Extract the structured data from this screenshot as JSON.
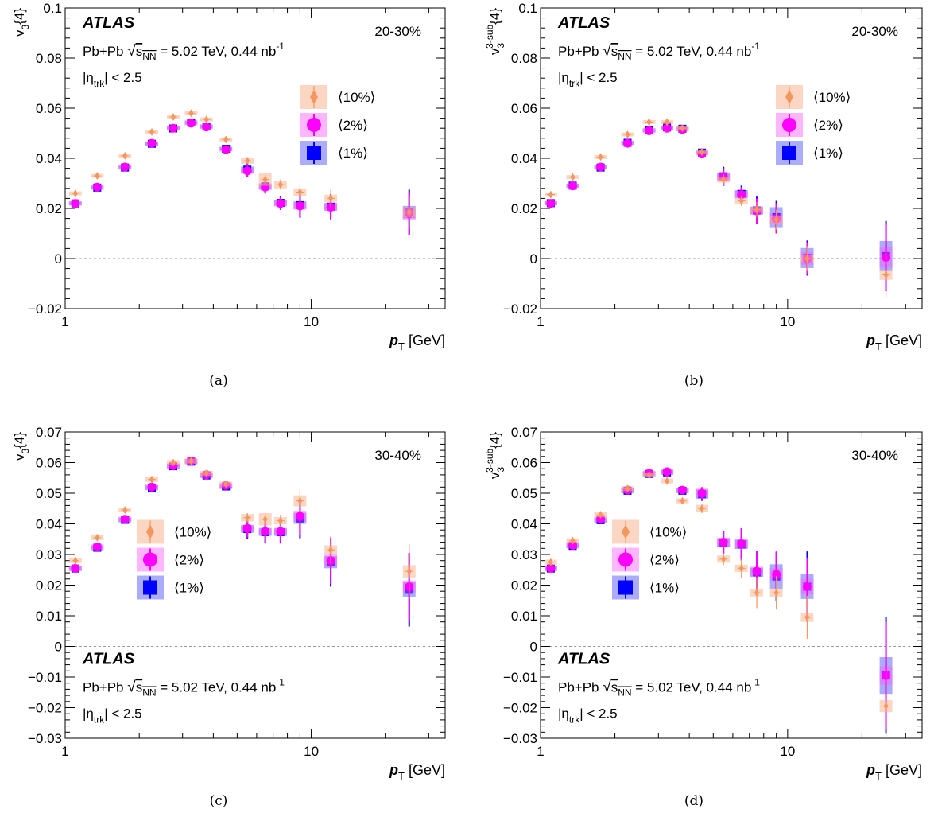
{
  "legend": {
    "entries": [
      {
        "key": "s10",
        "label": "⟨10%⟩"
      },
      {
        "key": "s2",
        "label": "⟨2%⟩"
      },
      {
        "key": "s1",
        "label": "⟨1%⟩"
      }
    ]
  },
  "chart_data": [
    {
      "type": "scatter",
      "panel": "(a)",
      "caption": "(a)",
      "experiment": "ATLAS",
      "system_text": "Pb+Pb",
      "energy_text": "s",
      "energy_sub": "NN",
      "energy_rest": "= 5.02 TeV, 0.44 nb",
      "lumi_exp": "-1",
      "eta_text": "|η",
      "eta_sub": "trk",
      "eta_rest": "| < 2.5",
      "centrality": "20-30%",
      "ylabel_main": "v",
      "ylabel_sub": "3",
      "ylabel_sup": "",
      "ylabel_tail": "{4}",
      "xlabel_p": "p",
      "xlabel_sub": "T",
      "xlabel_rest": "[GeV]",
      "xscale": "log",
      "xlim": [
        1,
        35
      ],
      "ylim": [
        -0.02,
        0.1
      ],
      "yticks": [
        -0.02,
        0,
        0.02,
        0.04,
        0.06,
        0.08,
        0.1
      ],
      "ytick_labels": [
        "−0.02",
        "0",
        "0.02",
        "0.04",
        "0.06",
        "0.08",
        "0.1"
      ],
      "xtick_labels": [
        "1",
        "10"
      ],
      "legend_placement": "upper-right",
      "series": [
        {
          "name": "⟨10%⟩",
          "key": "s10",
          "x": [
            1.1,
            1.35,
            1.75,
            2.25,
            2.75,
            3.25,
            3.75,
            4.5,
            5.5,
            6.5,
            7.5,
            9,
            12,
            25
          ],
          "y": [
            0.026,
            0.033,
            0.041,
            0.0505,
            0.0565,
            0.058,
            0.0555,
            0.0475,
            0.039,
            0.0315,
            0.0295,
            0.0265,
            0.024,
            0.0185
          ],
          "err": [
            0.0008,
            0.0008,
            0.0008,
            0.0008,
            0.0008,
            0.0008,
            0.0008,
            0.0008,
            0.0012,
            0.002,
            0.002,
            0.0035,
            0.0035,
            0.006
          ],
          "sys": [
            0.0008,
            0.0008,
            0.0008,
            0.0008,
            0.0008,
            0.0008,
            0.0008,
            0.0008,
            0.0012,
            0.0025,
            0.0015,
            0.0015,
            0.0015,
            0.002
          ]
        },
        {
          "name": "⟨2%⟩",
          "key": "s2",
          "x": [
            1.1,
            1.35,
            1.75,
            2.25,
            2.75,
            3.25,
            3.75,
            4.5,
            5.5,
            6.5,
            7.5,
            9,
            12,
            25
          ],
          "y": [
            0.022,
            0.0285,
            0.0365,
            0.046,
            0.052,
            0.054,
            0.0525,
            0.0435,
            0.035,
            0.0285,
            0.022,
            0.021,
            0.0205,
            0.018
          ],
          "err": [
            0.0007,
            0.0007,
            0.0007,
            0.0007,
            0.0007,
            0.0007,
            0.0007,
            0.0009,
            0.0025,
            0.0025,
            0.0025,
            0.0045,
            0.0045,
            0.0085
          ],
          "sys": [
            0.0008,
            0.0008,
            0.0008,
            0.0008,
            0.0008,
            0.0008,
            0.0008,
            0.0008,
            0.0012,
            0.0012,
            0.0012,
            0.0015,
            0.0015,
            0.0025
          ]
        },
        {
          "name": "⟨1%⟩",
          "key": "s1",
          "x": [
            1.1,
            1.35,
            1.75,
            2.25,
            2.75,
            3.25,
            3.75,
            4.5,
            5.5,
            6.5,
            7.5,
            9,
            12,
            25
          ],
          "y": [
            0.022,
            0.0283,
            0.0363,
            0.0458,
            0.0519,
            0.0543,
            0.0527,
            0.0438,
            0.0355,
            0.0288,
            0.0222,
            0.0213,
            0.0207,
            0.0185
          ],
          "err": [
            0.0007,
            0.0007,
            0.0007,
            0.0007,
            0.0007,
            0.0007,
            0.0007,
            0.0009,
            0.0028,
            0.0028,
            0.0028,
            0.005,
            0.005,
            0.009
          ],
          "sys": [
            0.0008,
            0.0008,
            0.0008,
            0.0008,
            0.0008,
            0.0008,
            0.0008,
            0.0008,
            0.0012,
            0.0012,
            0.0012,
            0.0015,
            0.0015,
            0.0025
          ]
        }
      ]
    },
    {
      "type": "scatter",
      "panel": "(b)",
      "caption": "(b)",
      "experiment": "ATLAS",
      "system_text": "Pb+Pb",
      "energy_text": "s",
      "energy_sub": "NN",
      "energy_rest": "= 5.02 TeV, 0.44 nb",
      "lumi_exp": "-1",
      "eta_text": "|η",
      "eta_sub": "trk",
      "eta_rest": "| < 2.5",
      "centrality": "20-30%",
      "ylabel_main": "v",
      "ylabel_sub": "3",
      "ylabel_sup": "3-sub",
      "ylabel_tail": "{4}",
      "xlabel_p": "p",
      "xlabel_sub": "T",
      "xlabel_rest": "[GeV]",
      "xscale": "log",
      "xlim": [
        1,
        35
      ],
      "ylim": [
        -0.02,
        0.1
      ],
      "yticks": [
        -0.02,
        0,
        0.02,
        0.04,
        0.06,
        0.08,
        0.1
      ],
      "ytick_labels": [
        "−0.02",
        "0",
        "0.02",
        "0.04",
        "0.06",
        "0.08",
        "0.1"
      ],
      "xtick_labels": [
        "1",
        "10"
      ],
      "legend_placement": "upper-right",
      "series": [
        {
          "name": "⟨10%⟩",
          "key": "s10",
          "x": [
            1.1,
            1.35,
            1.75,
            2.25,
            2.75,
            3.25,
            3.75,
            4.5,
            5.5,
            6.5,
            7.5,
            9,
            12,
            25
          ],
          "y": [
            0.0255,
            0.0325,
            0.0405,
            0.0495,
            0.0545,
            0.0545,
            0.052,
            0.0425,
            0.0315,
            0.023,
            0.0195,
            0.0155,
            0.0,
            -0.0065
          ],
          "err": [
            0.0008,
            0.0008,
            0.0008,
            0.0008,
            0.0008,
            0.0008,
            0.0008,
            0.0008,
            0.002,
            0.002,
            0.003,
            0.004,
            0.005,
            0.009
          ],
          "sys": [
            0.0008,
            0.0008,
            0.0008,
            0.0008,
            0.0008,
            0.0008,
            0.0008,
            0.0008,
            0.0012,
            0.0012,
            0.0012,
            0.0015,
            0.0015,
            0.002
          ]
        },
        {
          "name": "⟨2%⟩",
          "key": "s2",
          "x": [
            1.1,
            1.35,
            1.75,
            2.25,
            2.75,
            3.25,
            3.75,
            4.5,
            5.5,
            6.5,
            7.5,
            9,
            12,
            25
          ],
          "y": [
            0.022,
            0.029,
            0.0365,
            0.046,
            0.051,
            0.052,
            0.0515,
            0.042,
            0.0325,
            0.0255,
            0.019,
            0.016,
            0.0,
            0.0005
          ],
          "err": [
            0.0007,
            0.0007,
            0.0007,
            0.0007,
            0.0007,
            0.0007,
            0.0007,
            0.0009,
            0.0035,
            0.003,
            0.005,
            0.006,
            0.0065,
            0.013
          ],
          "sys": [
            0.0008,
            0.0008,
            0.0008,
            0.0008,
            0.0008,
            0.0008,
            0.0008,
            0.0008,
            0.0015,
            0.0015,
            0.0015,
            0.002,
            0.0025,
            0.004
          ]
        },
        {
          "name": "⟨1%⟩",
          "key": "s1",
          "x": [
            1.1,
            1.35,
            1.75,
            2.25,
            2.75,
            3.25,
            3.75,
            4.5,
            5.5,
            6.5,
            7.5,
            9,
            12,
            25
          ],
          "y": [
            0.0221,
            0.0291,
            0.0363,
            0.0462,
            0.0512,
            0.0523,
            0.0518,
            0.0423,
            0.0328,
            0.0258,
            0.0192,
            0.0165,
            0.0002,
            0.001
          ],
          "err": [
            0.0007,
            0.0007,
            0.0007,
            0.0007,
            0.0007,
            0.0007,
            0.0007,
            0.0009,
            0.0038,
            0.0033,
            0.0055,
            0.0065,
            0.007,
            0.014
          ],
          "sys": [
            0.0008,
            0.0008,
            0.0008,
            0.0008,
            0.0008,
            0.0008,
            0.0008,
            0.0008,
            0.0015,
            0.0015,
            0.0015,
            0.004,
            0.004,
            0.006
          ]
        }
      ]
    },
    {
      "type": "scatter",
      "panel": "(c)",
      "caption": "(c)",
      "experiment": "ATLAS",
      "system_text": "Pb+Pb",
      "energy_text": "s",
      "energy_sub": "NN",
      "energy_rest": "= 5.02 TeV, 0.44 nb",
      "lumi_exp": "-1",
      "eta_text": "|η",
      "eta_sub": "trk",
      "eta_rest": "| < 2.5",
      "centrality": "30-40%",
      "ylabel_main": "v",
      "ylabel_sub": "3",
      "ylabel_sup": "",
      "ylabel_tail": "{4}",
      "xlabel_p": "p",
      "xlabel_sub": "T",
      "xlabel_rest": "[GeV]",
      "xscale": "log",
      "xlim": [
        1,
        35
      ],
      "ylim": [
        -0.03,
        0.07
      ],
      "yticks": [
        -0.03,
        -0.02,
        -0.01,
        0,
        0.01,
        0.02,
        0.03,
        0.04,
        0.05,
        0.06,
        0.07
      ],
      "ytick_labels": [
        "−0.03",
        "−0.02",
        "−0.01",
        "0",
        "0.01",
        "0.02",
        "0.03",
        "0.04",
        "0.05",
        "0.06",
        "0.07"
      ],
      "xtick_labels": [
        "1",
        "10"
      ],
      "legend_placement": "center-left",
      "series": [
        {
          "name": "⟨10%⟩",
          "key": "s10",
          "x": [
            1.1,
            1.35,
            1.75,
            2.25,
            2.75,
            3.25,
            3.75,
            4.5,
            5.5,
            6.5,
            7.5,
            9,
            12,
            25
          ],
          "y": [
            0.028,
            0.0355,
            0.0445,
            0.0545,
            0.06,
            0.0605,
            0.0565,
            0.053,
            0.042,
            0.0415,
            0.041,
            0.0475,
            0.0315,
            0.0245
          ],
          "err": [
            0.0008,
            0.0008,
            0.0008,
            0.0008,
            0.0008,
            0.0008,
            0.0008,
            0.0008,
            0.0015,
            0.002,
            0.002,
            0.0035,
            0.0045,
            0.009
          ],
          "sys": [
            0.0008,
            0.0008,
            0.0008,
            0.0008,
            0.0008,
            0.0008,
            0.0008,
            0.0008,
            0.0012,
            0.002,
            0.0012,
            0.0018,
            0.0015,
            0.002
          ]
        },
        {
          "name": "⟨2%⟩",
          "key": "s2",
          "x": [
            1.1,
            1.35,
            1.75,
            2.25,
            2.75,
            3.25,
            3.75,
            4.5,
            5.5,
            6.5,
            7.5,
            9,
            12,
            25
          ],
          "y": [
            0.0255,
            0.0325,
            0.0415,
            0.052,
            0.059,
            0.0605,
            0.056,
            0.0525,
            0.0385,
            0.0375,
            0.0375,
            0.0425,
            0.028,
            0.0195
          ],
          "err": [
            0.0007,
            0.0007,
            0.0007,
            0.0007,
            0.0007,
            0.0007,
            0.0007,
            0.0009,
            0.003,
            0.0035,
            0.0035,
            0.006,
            0.0075,
            0.011
          ],
          "sys": [
            0.0008,
            0.0008,
            0.0008,
            0.0008,
            0.0008,
            0.0008,
            0.0008,
            0.0008,
            0.0012,
            0.0012,
            0.0012,
            0.0018,
            0.002,
            0.002
          ]
        },
        {
          "name": "⟨1%⟩",
          "key": "s1",
          "x": [
            1.1,
            1.35,
            1.75,
            2.25,
            2.75,
            3.25,
            3.75,
            4.5,
            5.5,
            6.5,
            7.5,
            9,
            12,
            25
          ],
          "y": [
            0.0254,
            0.0322,
            0.0413,
            0.0518,
            0.0588,
            0.0603,
            0.0558,
            0.0522,
            0.0383,
            0.0373,
            0.0373,
            0.0418,
            0.0275,
            0.0185
          ],
          "err": [
            0.0007,
            0.0007,
            0.0007,
            0.0007,
            0.0007,
            0.0007,
            0.0007,
            0.0009,
            0.0032,
            0.0037,
            0.0037,
            0.0065,
            0.008,
            0.012
          ],
          "sys": [
            0.0008,
            0.0008,
            0.0008,
            0.0008,
            0.0008,
            0.0008,
            0.0008,
            0.0008,
            0.0012,
            0.0012,
            0.0012,
            0.0018,
            0.002,
            0.0025
          ]
        }
      ]
    },
    {
      "type": "scatter",
      "panel": "(d)",
      "caption": "(d)",
      "experiment": "ATLAS",
      "system_text": "Pb+Pb",
      "energy_text": "s",
      "energy_sub": "NN",
      "energy_rest": "= 5.02 TeV, 0.44 nb",
      "lumi_exp": "-1",
      "eta_text": "|η",
      "eta_sub": "trk",
      "eta_rest": "| < 2.5",
      "centrality": "30-40%",
      "ylabel_main": "v",
      "ylabel_sub": "3",
      "ylabel_sup": "3-sub",
      "ylabel_tail": "{4}",
      "xlabel_p": "p",
      "xlabel_sub": "T",
      "xlabel_rest": "[GeV]",
      "xscale": "log",
      "xlim": [
        1,
        35
      ],
      "ylim": [
        -0.03,
        0.07
      ],
      "yticks": [
        -0.03,
        -0.02,
        -0.01,
        0,
        0.01,
        0.02,
        0.03,
        0.04,
        0.05,
        0.06,
        0.07
      ],
      "ytick_labels": [
        "−0.03",
        "−0.02",
        "−0.01",
        "0",
        "0.01",
        "0.02",
        "0.03",
        "0.04",
        "0.05",
        "0.06",
        "0.07"
      ],
      "xtick_labels": [
        "1",
        "10"
      ],
      "legend_placement": "center-left",
      "series": [
        {
          "name": "⟨10%⟩",
          "key": "s10",
          "x": [
            1.1,
            1.35,
            1.75,
            2.25,
            2.75,
            3.25,
            3.75,
            4.5,
            5.5,
            6.5,
            7.5,
            9,
            12,
            25
          ],
          "y": [
            0.0275,
            0.0345,
            0.043,
            0.0515,
            0.056,
            0.054,
            0.0475,
            0.045,
            0.0285,
            0.0255,
            0.0175,
            0.0175,
            0.0095,
            -0.0195
          ],
          "err": [
            0.0008,
            0.0008,
            0.0008,
            0.0008,
            0.0008,
            0.0008,
            0.0008,
            0.0015,
            0.002,
            0.003,
            0.005,
            0.0055,
            0.007,
            0.011
          ],
          "sys": [
            0.0008,
            0.0008,
            0.0008,
            0.0008,
            0.0008,
            0.0008,
            0.0008,
            0.0012,
            0.0012,
            0.0012,
            0.0012,
            0.0015,
            0.0015,
            0.002
          ]
        },
        {
          "name": "⟨2%⟩",
          "key": "s2",
          "x": [
            1.1,
            1.35,
            1.75,
            2.25,
            2.75,
            3.25,
            3.75,
            4.5,
            5.5,
            6.5,
            7.5,
            9,
            12,
            25
          ],
          "y": [
            0.0255,
            0.033,
            0.0415,
            0.051,
            0.0565,
            0.057,
            0.051,
            0.05,
            0.034,
            0.0335,
            0.0245,
            0.0235,
            0.0195,
            -0.0095
          ],
          "err": [
            0.0007,
            0.0007,
            0.0007,
            0.0007,
            0.0007,
            0.0007,
            0.0007,
            0.002,
            0.0035,
            0.005,
            0.0065,
            0.0075,
            0.0095,
            0.0175
          ],
          "sys": [
            0.0008,
            0.0008,
            0.0008,
            0.0008,
            0.0008,
            0.0008,
            0.0008,
            0.0015,
            0.0015,
            0.0015,
            0.0015,
            0.002,
            0.0025,
            0.003
          ]
        },
        {
          "name": "⟨1%⟩",
          "key": "s1",
          "x": [
            1.1,
            1.35,
            1.75,
            2.25,
            2.75,
            3.25,
            3.75,
            4.5,
            5.5,
            6.5,
            7.5,
            9,
            12,
            25
          ],
          "y": [
            0.0254,
            0.0328,
            0.0412,
            0.0508,
            0.0563,
            0.0568,
            0.0508,
            0.0497,
            0.0338,
            0.0333,
            0.0242,
            0.0228,
            0.0195,
            -0.0095
          ],
          "err": [
            0.0007,
            0.0007,
            0.0007,
            0.0007,
            0.0007,
            0.0007,
            0.0007,
            0.0022,
            0.0038,
            0.0053,
            0.0068,
            0.008,
            0.0115,
            0.019
          ],
          "sys": [
            0.0008,
            0.0008,
            0.0008,
            0.0008,
            0.0008,
            0.0008,
            0.0008,
            0.0015,
            0.0015,
            0.0015,
            0.0015,
            0.004,
            0.004,
            0.006
          ]
        }
      ]
    }
  ]
}
